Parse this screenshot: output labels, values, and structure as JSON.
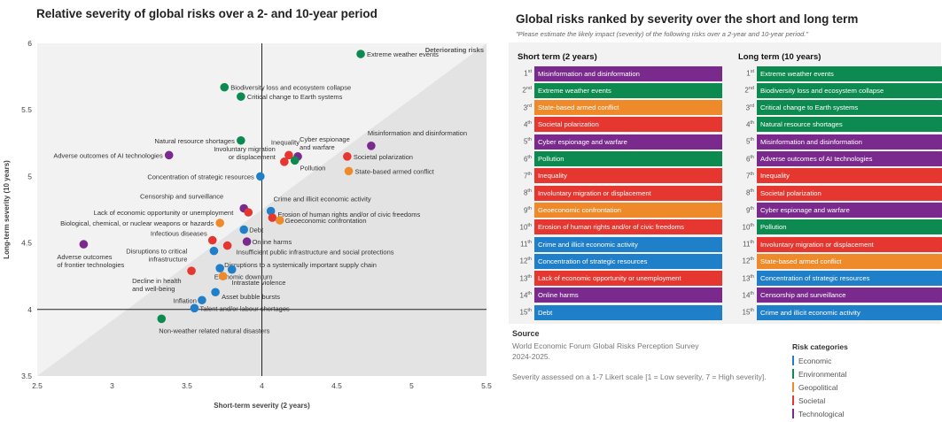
{
  "colors": {
    "Economic": "#1f7fc8",
    "Environmental": "#0c8a4f",
    "Geopolitical": "#ee8a2a",
    "Societal": "#e5362f",
    "Technological": "#7a2a8c"
  },
  "left_panel": {
    "title": "Relative severity of global risks over a 2- and 10-year period"
  },
  "chart_data": {
    "type": "scatter",
    "title": "Relative severity of global risks over a 2- and 10-year period",
    "xlabel": "Short-term severity (2 years)",
    "ylabel": "Long-term severity (10 years)",
    "xlim": [
      2.5,
      5.5
    ],
    "ylim": [
      3.5,
      6
    ],
    "xticks": [
      "2.5",
      "3",
      "3.5",
      "4",
      "4.5",
      "5",
      "5.5"
    ],
    "yticks": [
      "3.5",
      "4",
      "4.5",
      "5",
      "5.5",
      "6"
    ],
    "reference_lines": {
      "x": 4,
      "y": 4
    },
    "shaded_region_label": "Deteriorating risks",
    "points": [
      {
        "label": "Extreme weather events",
        "category": "Environmental",
        "x": 4.66,
        "y": 5.92
      },
      {
        "label": "Biodiversity loss and ecosystem collapse",
        "category": "Environmental",
        "x": 3.75,
        "y": 5.67
      },
      {
        "label": "Critical change to Earth systems",
        "category": "Environmental",
        "x": 3.86,
        "y": 5.6
      },
      {
        "label": "Natural resource shortages",
        "category": "Environmental",
        "x": 3.86,
        "y": 5.27
      },
      {
        "label": "Misinformation and disinformation",
        "category": "Technological",
        "x": 4.73,
        "y": 5.23
      },
      {
        "label": "Adverse outcomes of AI technologies",
        "category": "Technological",
        "x": 3.38,
        "y": 5.16
      },
      {
        "label": "Inequality",
        "category": "Societal",
        "x": 4.18,
        "y": 5.16
      },
      {
        "label": "Cyber espionage and warfare",
        "category": "Technological",
        "x": 4.24,
        "y": 5.15
      },
      {
        "label": "Involuntary migration or displacement",
        "category": "Societal",
        "x": 4.15,
        "y": 5.11
      },
      {
        "label": "Pollution",
        "category": "Environmental",
        "x": 4.22,
        "y": 5.12
      },
      {
        "label": "Societal polarization",
        "category": "Societal",
        "x": 4.57,
        "y": 5.15
      },
      {
        "label": "State-based armed conflict",
        "category": "Geopolitical",
        "x": 4.58,
        "y": 5.04
      },
      {
        "label": "Concentration of strategic resources",
        "category": "Economic",
        "x": 3.99,
        "y": 5.0
      },
      {
        "label": "Censorship and surveillance",
        "category": "Technological",
        "x": 3.88,
        "y": 4.76
      },
      {
        "label": "Lack of economic opportunity or unemployment",
        "category": "Societal",
        "x": 3.91,
        "y": 4.73
      },
      {
        "label": "Crime and illicit economic activity",
        "category": "Economic",
        "x": 4.06,
        "y": 4.74
      },
      {
        "label": "Erosion of human rights and/or of civic freedoms",
        "category": "Societal",
        "x": 4.07,
        "y": 4.69
      },
      {
        "label": "Geoeconomic confrontation",
        "category": "Geopolitical",
        "x": 4.12,
        "y": 4.67
      },
      {
        "label": "Biological, chemical, or nuclear weapons or hazards",
        "category": "Geopolitical",
        "x": 3.72,
        "y": 4.65
      },
      {
        "label": "Debt",
        "category": "Economic",
        "x": 3.88,
        "y": 4.6
      },
      {
        "label": "Infectious diseases",
        "category": "Societal",
        "x": 3.67,
        "y": 4.52
      },
      {
        "label": "Online harms",
        "category": "Technological",
        "x": 3.9,
        "y": 4.51
      },
      {
        "label": "Insufficient public infrastructure and social protections",
        "category": "Societal",
        "x": 3.77,
        "y": 4.48
      },
      {
        "label": "Disruptions to critical infrastructure",
        "category": "Economic",
        "x": 3.68,
        "y": 4.44
      },
      {
        "label": "Adverse outcomes of frontier technologies",
        "category": "Technological",
        "x": 2.81,
        "y": 4.49
      },
      {
        "label": "Disruptions to a systemically important supply chain",
        "category": "Economic",
        "x": 3.72,
        "y": 4.31
      },
      {
        "label": "Economic downturn",
        "category": "Economic",
        "x": 3.8,
        "y": 4.3
      },
      {
        "label": "Decline in health and well-being",
        "category": "Societal",
        "x": 3.53,
        "y": 4.29
      },
      {
        "label": "Intrastate violence",
        "category": "Geopolitical",
        "x": 3.74,
        "y": 4.25
      },
      {
        "label": "Asset bubble bursts",
        "category": "Economic",
        "x": 3.69,
        "y": 4.13
      },
      {
        "label": "Inflation",
        "category": "Economic",
        "x": 3.6,
        "y": 4.07
      },
      {
        "label": "Talent and/or labour shortages",
        "category": "Economic",
        "x": 3.55,
        "y": 4.01
      },
      {
        "label": "Non-weather related natural disasters",
        "category": "Environmental",
        "x": 3.33,
        "y": 3.93
      }
    ]
  },
  "right_panel": {
    "title": "Global risks ranked by severity over the short and long term",
    "subtitle": "\"Please estimate the likely impact (severity) of the following risks over a 2-year and 10-year period.\"",
    "short_term": {
      "heading": "Short term (2 years)",
      "items": [
        {
          "rank": "1",
          "suffix": "st",
          "label": "Misinformation and disinformation",
          "category": "Technological"
        },
        {
          "rank": "2",
          "suffix": "nd",
          "label": "Extreme weather events",
          "category": "Environmental"
        },
        {
          "rank": "3",
          "suffix": "rd",
          "label": "State-based armed conflict",
          "category": "Geopolitical"
        },
        {
          "rank": "4",
          "suffix": "th",
          "label": "Societal polarization",
          "category": "Societal"
        },
        {
          "rank": "5",
          "suffix": "th",
          "label": "Cyber espionage and warfare",
          "category": "Technological"
        },
        {
          "rank": "6",
          "suffix": "th",
          "label": "Pollution",
          "category": "Environmental"
        },
        {
          "rank": "7",
          "suffix": "th",
          "label": "Inequality",
          "category": "Societal"
        },
        {
          "rank": "8",
          "suffix": "th",
          "label": "Involuntary migration or displacement",
          "category": "Societal"
        },
        {
          "rank": "9",
          "suffix": "th",
          "label": "Geoeconomic confrontation",
          "category": "Geopolitical"
        },
        {
          "rank": "10",
          "suffix": "th",
          "label": "Erosion of human rights and/or of civic freedoms",
          "category": "Societal"
        },
        {
          "rank": "11",
          "suffix": "th",
          "label": "Crime and illicit economic activity",
          "category": "Economic"
        },
        {
          "rank": "12",
          "suffix": "th",
          "label": "Concentration of strategic resources",
          "category": "Economic"
        },
        {
          "rank": "13",
          "suffix": "th",
          "label": "Lack of economic opportunity or unemployment",
          "category": "Societal"
        },
        {
          "rank": "14",
          "suffix": "th",
          "label": "Online harms",
          "category": "Technological"
        },
        {
          "rank": "15",
          "suffix": "th",
          "label": "Debt",
          "category": "Economic"
        }
      ]
    },
    "long_term": {
      "heading": "Long term (10 years)",
      "items": [
        {
          "rank": "1",
          "suffix": "st",
          "label": "Extreme weather events",
          "category": "Environmental"
        },
        {
          "rank": "2",
          "suffix": "nd",
          "label": "Biodiversity loss and ecosystem collapse",
          "category": "Environmental"
        },
        {
          "rank": "3",
          "suffix": "rd",
          "label": "Critical change to Earth systems",
          "category": "Environmental"
        },
        {
          "rank": "4",
          "suffix": "th",
          "label": "Natural resource shortages",
          "category": "Environmental"
        },
        {
          "rank": "5",
          "suffix": "th",
          "label": "Misinformation and disinformation",
          "category": "Technological"
        },
        {
          "rank": "6",
          "suffix": "th",
          "label": "Adverse outcomes of AI technologies",
          "category": "Technological"
        },
        {
          "rank": "7",
          "suffix": "th",
          "label": "Inequality",
          "category": "Societal"
        },
        {
          "rank": "8",
          "suffix": "th",
          "label": "Societal polarization",
          "category": "Societal"
        },
        {
          "rank": "9",
          "suffix": "th",
          "label": "Cyber espionage and warfare",
          "category": "Technological"
        },
        {
          "rank": "10",
          "suffix": "th",
          "label": "Pollution",
          "category": "Environmental"
        },
        {
          "rank": "11",
          "suffix": "th",
          "label": "Involuntary migration or displacement",
          "category": "Societal"
        },
        {
          "rank": "12",
          "suffix": "th",
          "label": "State-based armed conflict",
          "category": "Geopolitical"
        },
        {
          "rank": "13",
          "suffix": "th",
          "label": "Concentration of strategic resources",
          "category": "Economic"
        },
        {
          "rank": "14",
          "suffix": "th",
          "label": "Censorship and surveillance",
          "category": "Technological"
        },
        {
          "rank": "15",
          "suffix": "th",
          "label": "Crime and illicit economic activity",
          "category": "Economic"
        }
      ]
    },
    "source": {
      "label": "Source",
      "text_line1": "World Economic Forum Global Risks Perception Survey",
      "text_line2": "2024-2025."
    },
    "note": "Severity assessed on a 1-7 Likert scale [1 = Low severity, 7 = High severity].",
    "legend": {
      "title": "Risk categories",
      "items": [
        "Economic",
        "Environmental",
        "Geopolitical",
        "Societal",
        "Technological"
      ]
    }
  }
}
